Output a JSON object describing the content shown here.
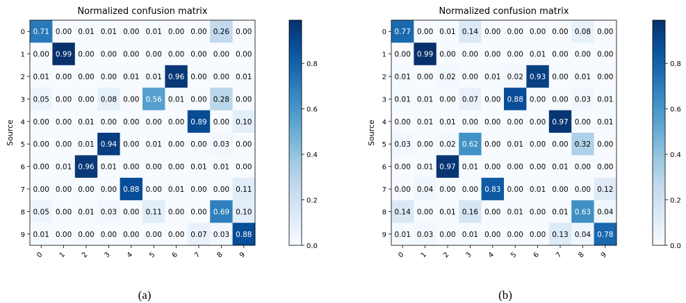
{
  "chart_data": [
    {
      "type": "heatmap",
      "title": "Normalized confusion matrix",
      "ylabel": "Source",
      "xlabel": "",
      "caption": "(a)",
      "row_labels": [
        "0",
        "1",
        "2",
        "3",
        "4",
        "5",
        "6",
        "7",
        "8",
        "9"
      ],
      "col_labels": [
        "0",
        "1",
        "2",
        "3",
        "4",
        "5",
        "6",
        "7",
        "8",
        "9"
      ],
      "colorbar_ticks": [
        "0.0",
        "0.2",
        "0.4",
        "0.6",
        "0.8"
      ],
      "colorbar_range": [
        0,
        0.99
      ],
      "colormap": "Blues",
      "values": [
        [
          0.71,
          0.0,
          0.01,
          0.01,
          0.0,
          0.01,
          0.0,
          0.0,
          0.26,
          0.0
        ],
        [
          0.0,
          0.99,
          0.0,
          0.0,
          0.0,
          0.0,
          0.0,
          0.0,
          0.0,
          0.0
        ],
        [
          0.01,
          0.0,
          0.0,
          0.0,
          0.01,
          0.01,
          0.96,
          0.0,
          0.0,
          0.01
        ],
        [
          0.05,
          0.0,
          0.0,
          0.08,
          0.0,
          0.56,
          0.01,
          0.0,
          0.28,
          0.0
        ],
        [
          0.0,
          0.0,
          0.01,
          0.0,
          0.0,
          0.0,
          0.0,
          0.89,
          0.0,
          0.1
        ],
        [
          0.0,
          0.0,
          0.01,
          0.94,
          0.0,
          0.01,
          0.0,
          0.0,
          0.03,
          0.0
        ],
        [
          0.0,
          0.01,
          0.96,
          0.01,
          0.0,
          0.0,
          0.0,
          0.01,
          0.01,
          0.0
        ],
        [
          0.0,
          0.0,
          0.0,
          0.0,
          0.88,
          0.0,
          0.01,
          0.0,
          0.0,
          0.11
        ],
        [
          0.05,
          0.0,
          0.01,
          0.03,
          0.0,
          0.11,
          0.0,
          0.0,
          0.69,
          0.1
        ],
        [
          0.01,
          0.0,
          0.0,
          0.0,
          0.0,
          0.0,
          0.0,
          0.07,
          0.03,
          0.88
        ]
      ]
    },
    {
      "type": "heatmap",
      "title": "Normalized confusion matrix",
      "ylabel": "Source",
      "xlabel": "",
      "caption": "(b)",
      "row_labels": [
        "0",
        "1",
        "2",
        "3",
        "4",
        "5",
        "6",
        "7",
        "8",
        "9"
      ],
      "col_labels": [
        "0",
        "1",
        "2",
        "3",
        "4",
        "5",
        "6",
        "7",
        "8",
        "9"
      ],
      "colorbar_ticks": [
        "0.0",
        "0.2",
        "0.4",
        "0.6",
        "0.8"
      ],
      "colorbar_range": [
        0,
        0.99
      ],
      "colormap": "Blues",
      "values": [
        [
          0.77,
          0.0,
          0.01,
          0.14,
          0.0,
          0.0,
          0.0,
          0.0,
          0.08,
          0.0
        ],
        [
          0.0,
          0.99,
          0.0,
          0.0,
          0.0,
          0.0,
          0.01,
          0.0,
          0.0,
          0.0
        ],
        [
          0.01,
          0.0,
          0.02,
          0.0,
          0.01,
          0.02,
          0.93,
          0.0,
          0.01,
          0.0
        ],
        [
          0.01,
          0.01,
          0.0,
          0.07,
          0.0,
          0.88,
          0.0,
          0.0,
          0.03,
          0.01
        ],
        [
          0.0,
          0.01,
          0.01,
          0.0,
          0.0,
          0.0,
          0.0,
          0.97,
          0.0,
          0.01
        ],
        [
          0.03,
          0.0,
          0.02,
          0.62,
          0.0,
          0.01,
          0.0,
          0.0,
          0.32,
          0.0
        ],
        [
          0.0,
          0.01,
          0.97,
          0.01,
          0.0,
          0.0,
          0.0,
          0.01,
          0.0,
          0.0
        ],
        [
          0.0,
          0.04,
          0.0,
          0.0,
          0.83,
          0.0,
          0.01,
          0.0,
          0.0,
          0.12
        ],
        [
          0.14,
          0.0,
          0.01,
          0.16,
          0.0,
          0.01,
          0.0,
          0.01,
          0.63,
          0.04
        ],
        [
          0.01,
          0.03,
          0.0,
          0.01,
          0.0,
          0.0,
          0.0,
          0.13,
          0.04,
          0.78
        ]
      ]
    }
  ]
}
